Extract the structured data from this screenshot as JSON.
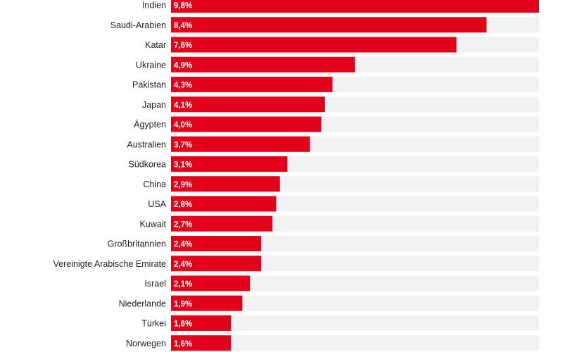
{
  "chart_data": {
    "type": "bar",
    "orientation": "horizontal",
    "categories": [
      "Indien",
      "Saudi-Arabien",
      "Katar",
      "Ukraine",
      "Pakistan",
      "Japan",
      "Ägypten",
      "Australien",
      "Südkorea",
      "China",
      "USA",
      "Kuwait",
      "Großbritannien",
      "Vereinigte Arabische Emirate",
      "Israel",
      "Niederlande",
      "Türkei",
      "Norwegen"
    ],
    "values": [
      9.8,
      8.4,
      7.6,
      4.9,
      4.3,
      4.1,
      4.0,
      3.7,
      3.1,
      2.9,
      2.8,
      2.7,
      2.4,
      2.4,
      2.1,
      1.9,
      1.6,
      1.6
    ],
    "value_labels": [
      "9,8%",
      "8,4%",
      "7,6%",
      "4,9%",
      "4,3%",
      "4,1%",
      "4,0%",
      "3,7%",
      "3,1%",
      "2,9%",
      "2,8%",
      "2,7%",
      "2,4%",
      "2,4%",
      "2,1%",
      "1,9%",
      "1,6%",
      "1,6%"
    ],
    "xlim": [
      0,
      9.8
    ],
    "colors": {
      "bar": "#e2001a",
      "track": "#f2f2f2",
      "value_text": "#ffffff",
      "label_text": "#222222"
    }
  }
}
